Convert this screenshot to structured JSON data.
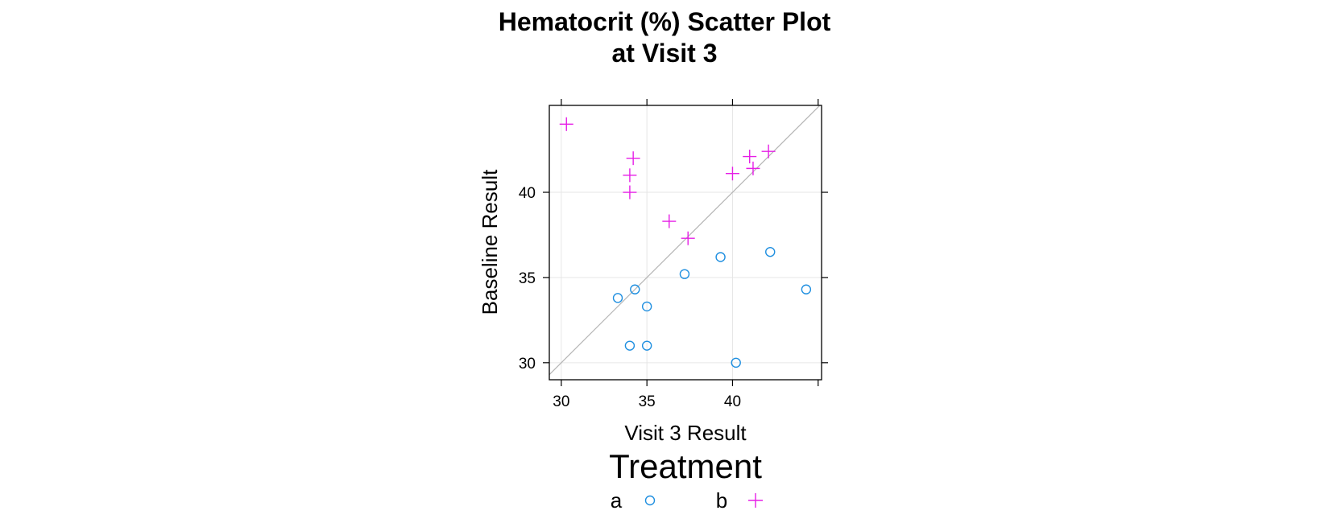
{
  "chart_data": {
    "type": "scatter",
    "title": [
      "Hematocrit (%) Scatter Plot",
      "at Visit 3"
    ],
    "xlabel": "Visit 3 Result",
    "ylabel": "Baseline Result",
    "xlim": [
      29.3,
      45.2
    ],
    "ylim": [
      29.0,
      45.1
    ],
    "x_ticks": [
      30,
      35,
      40
    ],
    "y_ticks": [
      30,
      35,
      40
    ],
    "grid": true,
    "reference_line": "identity",
    "legend": {
      "title": "Treatment",
      "placement": "bottom",
      "entries": [
        {
          "label": "a",
          "marker": "circle",
          "color": "#1f8fe0"
        },
        {
          "label": "b",
          "marker": "plus",
          "color": "#e61ee6"
        }
      ]
    },
    "series": [
      {
        "name": "a",
        "marker": "circle",
        "color": "#1f8fe0",
        "points": [
          {
            "x": 33.3,
            "y": 33.8
          },
          {
            "x": 34.3,
            "y": 34.3
          },
          {
            "x": 35.0,
            "y": 33.3
          },
          {
            "x": 34.0,
            "y": 31.0
          },
          {
            "x": 35.0,
            "y": 31.0
          },
          {
            "x": 37.2,
            "y": 35.2
          },
          {
            "x": 39.3,
            "y": 36.2
          },
          {
            "x": 42.2,
            "y": 36.5
          },
          {
            "x": 44.3,
            "y": 34.3
          },
          {
            "x": 40.2,
            "y": 30.0
          }
        ]
      },
      {
        "name": "b",
        "marker": "plus",
        "color": "#e61ee6",
        "points": [
          {
            "x": 30.3,
            "y": 44.0
          },
          {
            "x": 34.2,
            "y": 42.0
          },
          {
            "x": 34.0,
            "y": 41.0
          },
          {
            "x": 34.0,
            "y": 40.0
          },
          {
            "x": 36.3,
            "y": 38.3
          },
          {
            "x": 37.4,
            "y": 37.3
          },
          {
            "x": 40.0,
            "y": 41.1
          },
          {
            "x": 41.0,
            "y": 42.1
          },
          {
            "x": 42.1,
            "y": 42.4
          },
          {
            "x": 41.2,
            "y": 41.4
          }
        ]
      }
    ]
  }
}
